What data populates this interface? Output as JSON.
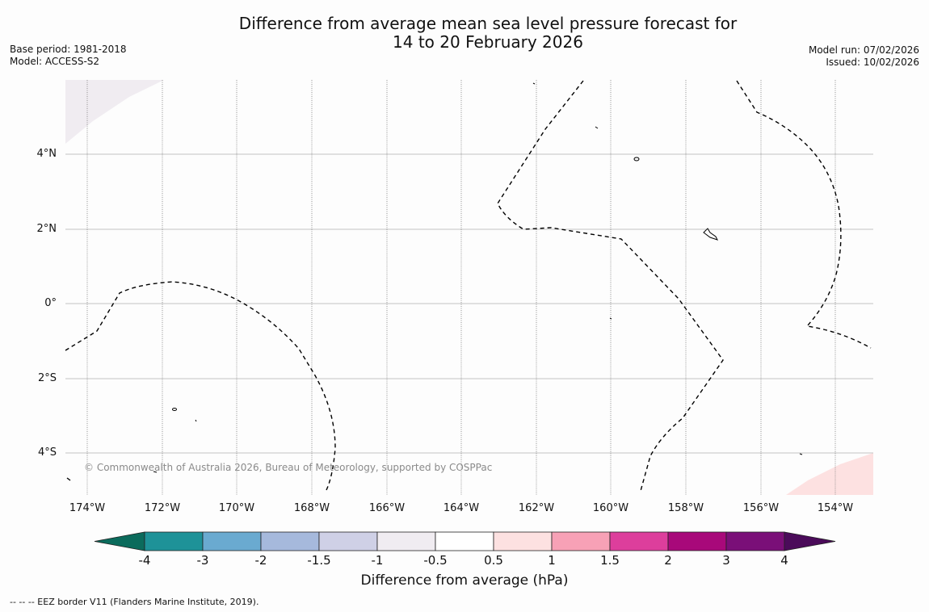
{
  "title_line1": "Difference from average mean sea level pressure forecast for",
  "title_line2": "14 to 20 February 2026",
  "base_period": "Base period: 1981-2018",
  "model": "Model: ACCESS-S2",
  "model_run": "Model run: 07/02/2026",
  "issued": "Issued: 10/02/2026",
  "copyright": "© Commonwealth of Australia 2026, Bureau of Meteorology, supported by COSPPac",
  "lat_labels": [
    "4°N",
    "2°N",
    "0°",
    "2°S",
    "4°S"
  ],
  "lon_labels": [
    "174°W",
    "172°W",
    "170°W",
    "168°W",
    "166°W",
    "164°W",
    "162°W",
    "160°W",
    "158°W",
    "156°W",
    "154°W"
  ],
  "colorbar": {
    "title": "Difference from average (hPa)",
    "ticks": [
      "-4",
      "-3",
      "-2",
      "-1.5",
      "-1",
      "-0.5",
      "0.5",
      "1",
      "1.5",
      "2",
      "3",
      "4"
    ],
    "colors": [
      "#0b6b5c",
      "#1e9298",
      "#6aaad0",
      "#a6b9dc",
      "#cfd0e6",
      "#f0ecf1",
      "#ffffff",
      "#fde1e1",
      "#f7a1b6",
      "#dd3e9c",
      "#a8097a",
      "#7a0f78",
      "#4b0b5a"
    ]
  },
  "legend_text": "--  --  -- EEZ border V11 (Flanders Marine Institute, 2019)."
}
